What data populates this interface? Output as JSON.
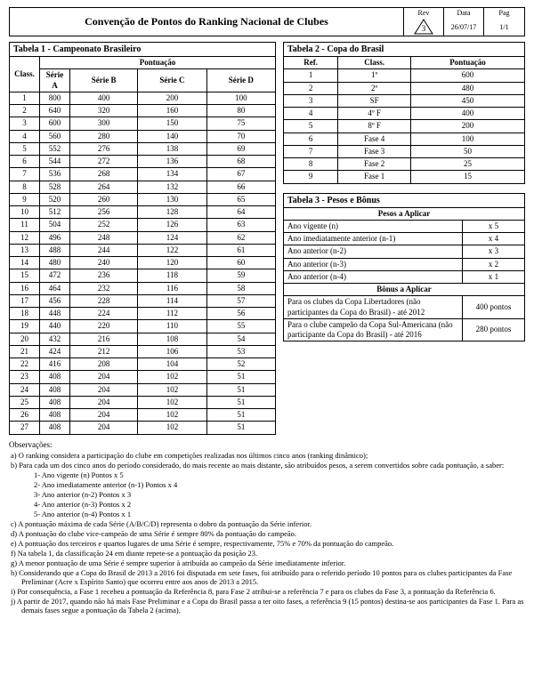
{
  "header": {
    "title": "Convenção de Pontos do Ranking Nacional de Clubes",
    "rev_label": "Rev",
    "rev_value": "3",
    "data_label": "Data",
    "data_value": "26/07/17",
    "pag_label": "Pag",
    "pag_value": "1/1"
  },
  "tabela1": {
    "title": "Tabela 1 - Campeonato Brasileiro",
    "class_label": "Class.",
    "pont_label": "Pontuação",
    "series": [
      "Série A",
      "Série B",
      "Série C",
      "Série D"
    ],
    "rows": [
      [
        "1",
        "800",
        "400",
        "200",
        "100"
      ],
      [
        "2",
        "640",
        "320",
        "160",
        "80"
      ],
      [
        "3",
        "600",
        "300",
        "150",
        "75"
      ],
      [
        "4",
        "560",
        "280",
        "140",
        "70"
      ],
      [
        "5",
        "552",
        "276",
        "138",
        "69"
      ],
      [
        "6",
        "544",
        "272",
        "136",
        "68"
      ],
      [
        "7",
        "536",
        "268",
        "134",
        "67"
      ],
      [
        "8",
        "528",
        "264",
        "132",
        "66"
      ],
      [
        "9",
        "520",
        "260",
        "130",
        "65"
      ],
      [
        "10",
        "512",
        "256",
        "128",
        "64"
      ],
      [
        "11",
        "504",
        "252",
        "126",
        "63"
      ],
      [
        "12",
        "496",
        "248",
        "124",
        "62"
      ],
      [
        "13",
        "488",
        "244",
        "122",
        "61"
      ],
      [
        "14",
        "480",
        "240",
        "120",
        "60"
      ],
      [
        "15",
        "472",
        "236",
        "118",
        "59"
      ],
      [
        "16",
        "464",
        "232",
        "116",
        "58"
      ],
      [
        "17",
        "456",
        "228",
        "114",
        "57"
      ],
      [
        "18",
        "448",
        "224",
        "112",
        "56"
      ],
      [
        "19",
        "440",
        "220",
        "110",
        "55"
      ],
      [
        "20",
        "432",
        "216",
        "108",
        "54"
      ],
      [
        "21",
        "424",
        "212",
        "106",
        "53"
      ],
      [
        "22",
        "416",
        "208",
        "104",
        "52"
      ],
      [
        "23",
        "408",
        "204",
        "102",
        "51"
      ],
      [
        "24",
        "408",
        "204",
        "102",
        "51"
      ],
      [
        "25",
        "408",
        "204",
        "102",
        "51"
      ],
      [
        "26",
        "408",
        "204",
        "102",
        "51"
      ],
      [
        "27",
        "408",
        "204",
        "102",
        "51"
      ]
    ]
  },
  "tabela2": {
    "title": "Tabela 2 - Copa do Brasil",
    "ref_label": "Ref.",
    "class_label": "Class.",
    "pont_label": "Pontuação",
    "rows": [
      [
        "1",
        "1º",
        "600"
      ],
      [
        "2",
        "2º",
        "480"
      ],
      [
        "3",
        "SF",
        "450"
      ],
      [
        "4",
        "4º F",
        "400"
      ],
      [
        "5",
        "8º F",
        "200"
      ],
      [
        "6",
        "Fase 4",
        "100"
      ],
      [
        "7",
        "Fase 3",
        "50"
      ],
      [
        "8",
        "Fase 2",
        "25"
      ],
      [
        "9",
        "Fase 1",
        "15"
      ]
    ]
  },
  "tabela3": {
    "title": "Tabela 3 - Pesos e Bônus",
    "pesos_label": "Pesos a Aplicar",
    "pesos": [
      [
        "Ano vigente (n)",
        "x 5"
      ],
      [
        "Ano imediatamente anterior  (n-1)",
        "x 4"
      ],
      [
        "Ano anterior  (n-2)",
        "x 3"
      ],
      [
        "Ano anterior  (n-3)",
        "x 2"
      ],
      [
        "Ano anterior  (n-4)",
        "x 1"
      ]
    ],
    "bonus_label": "Bônus a Aplicar",
    "bonus": [
      [
        "Para os clubes da Copa Libertadores (não participantes da Copa do Brasil) - até 2012",
        "400 pontos"
      ],
      [
        "Para o clube campeão da Copa Sul-Americana (não participante da Copa do Brasil) - até 2016",
        "280 pontos"
      ]
    ]
  },
  "obs": {
    "title": "Observações:",
    "items": [
      "a) O ranking considera a participação do clube em competições realizadas nos últimos cinco anos (ranking dinâmico);",
      "b) Para cada um dos cinco anos do período considerado, do mais recente ao mais distante, são atribuídos pesos, a serem convertidos sobre cada pontuação, a saber:"
    ],
    "sub_b": [
      "1- Ano vigente (n)                         Pontos x 5",
      "2- Ano imediatamente anterior (n-1)    Pontos x 4",
      "3- Ano anterior (n-2)                        Pontos x 3",
      "4- Ano anterior (n-3)                        Pontos x 2",
      "5- Ano anterior (n-4)                        Pontos x 1"
    ],
    "rest": [
      "c) A pontuação máxima de cada Série (A/B/C/D) representa o dobro da pontuação da Série inferior.",
      "d) A pontuação do clube vice-campeão de uma Série é sempre 80% da pontuação do campeão.",
      "e) A pontuação dos terceiros e quartos lugares de uma Série é sempre, respectivamente, 75% e 70% da pontuação do campeão.",
      "f) Na tabela 1, da classificação 24 em diante repete-se a pontuação da posição 23.",
      "g) A menor pontuação de uma Série é sempre superior à atribuída ao campeão da Série imediatamente inferior.",
      "h) Considerando que a Copa do Brasil de 2013 a 2016 foi disputada em sete fases, foi atribuído para o referido período 10 pontos para os clubes participantes da Fase Preliminar (Acre x Espírito Santo) que ocorreu entre aos anos de 2013 a 2015.",
      "i) Por consequência, a Fase 1 recebeu a pontuação da Referência 8, para Fase 2 atribui-se a referência 7 e para os clubes da Fase 3, a pontuação da Referência 6.",
      "j) A partir de 2017, quando não há mais Fase Preliminar e a Copa do Brasil passa a ter oito fases, a referência 9 (15 pontos) destina-se aos participantes da Fase 1. Para as demais fases segue a pontuação da Tabela 2 (acima)."
    ]
  }
}
